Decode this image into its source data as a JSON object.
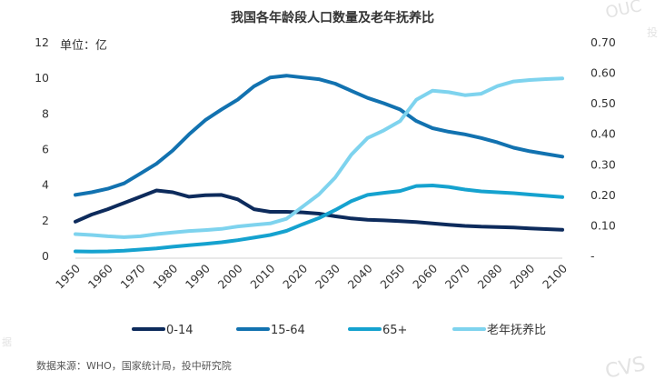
{
  "chart_data": {
    "type": "line",
    "title": "我国各年龄段人口数量及老年抚养比",
    "left_axis_unit": "单位：亿",
    "source": "数据来源：WHO，国家统计局，投中研究院",
    "x": [
      1950,
      1955,
      1960,
      1965,
      1970,
      1975,
      1980,
      1985,
      1990,
      1995,
      2000,
      2005,
      2010,
      2015,
      2020,
      2025,
      2030,
      2035,
      2040,
      2045,
      2050,
      2055,
      2060,
      2065,
      2070,
      2075,
      2080,
      2085,
      2090,
      2095,
      2100
    ],
    "x_ticks": [
      "1950",
      "1960",
      "1970",
      "1980",
      "1990",
      "2000",
      "2010",
      "2020",
      "2030",
      "2040",
      "2050",
      "2060",
      "2070",
      "2080",
      "2090",
      "2100"
    ],
    "y_left": {
      "min": 0,
      "max": 12,
      "ticks": [
        "0",
        "2",
        "4",
        "6",
        "8",
        "10",
        "12"
      ]
    },
    "y_right": {
      "min": 0,
      "max": 0.7,
      "ticks": [
        "-",
        "0.10",
        "0.20",
        "0.30",
        "0.40",
        "0.50",
        "0.60",
        "0.70"
      ]
    },
    "series": [
      {
        "name": "0-14",
        "axis": "left",
        "color": "#0d2b5c",
        "values": [
          1.9,
          2.3,
          2.6,
          2.95,
          3.3,
          3.65,
          3.55,
          3.3,
          3.38,
          3.4,
          3.15,
          2.6,
          2.45,
          2.45,
          2.42,
          2.35,
          2.2,
          2.08,
          2.0,
          1.97,
          1.93,
          1.88,
          1.8,
          1.72,
          1.66,
          1.62,
          1.6,
          1.57,
          1.52,
          1.48,
          1.44
        ]
      },
      {
        "name": "15-64",
        "axis": "left",
        "color": "#1272b0",
        "values": [
          3.4,
          3.55,
          3.75,
          4.05,
          4.6,
          5.15,
          5.9,
          6.8,
          7.6,
          8.2,
          8.75,
          9.5,
          10.0,
          10.1,
          10.0,
          9.9,
          9.65,
          9.25,
          8.85,
          8.55,
          8.2,
          7.55,
          7.15,
          6.95,
          6.8,
          6.6,
          6.35,
          6.05,
          5.85,
          5.7,
          5.55
        ]
      },
      {
        "name": "65+",
        "axis": "left",
        "color": "#15a2cf",
        "values": [
          0.23,
          0.22,
          0.23,
          0.27,
          0.33,
          0.4,
          0.49,
          0.57,
          0.65,
          0.74,
          0.86,
          1.0,
          1.15,
          1.38,
          1.75,
          2.1,
          2.55,
          3.05,
          3.4,
          3.52,
          3.62,
          3.9,
          3.93,
          3.85,
          3.7,
          3.6,
          3.55,
          3.5,
          3.42,
          3.35,
          3.28
        ]
      },
      {
        "name": "老年抚养比",
        "axis": "right",
        "color": "#7ed3ee",
        "values": [
          0.07,
          0.067,
          0.063,
          0.06,
          0.063,
          0.07,
          0.075,
          0.08,
          0.083,
          0.087,
          0.095,
          0.1,
          0.105,
          0.12,
          0.16,
          0.2,
          0.255,
          0.33,
          0.385,
          0.41,
          0.44,
          0.51,
          0.54,
          0.535,
          0.525,
          0.53,
          0.555,
          0.57,
          0.575,
          0.578,
          0.58
        ]
      }
    ]
  },
  "watermarks": [
    "OUC",
    "投",
    "CVS",
    "据"
  ]
}
